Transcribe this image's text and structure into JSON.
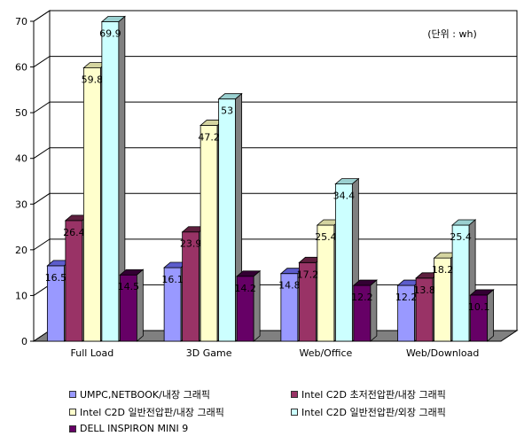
{
  "chart_data": {
    "type": "bar",
    "unit_note": "(단위 : wh)",
    "categories": [
      "Full Load",
      "3D Game",
      "Web/Office",
      "Web/Download"
    ],
    "ylim": [
      0,
      70
    ],
    "yticks": [
      0,
      10,
      20,
      30,
      40,
      50,
      60,
      70
    ],
    "grid": true,
    "legend_position": "bottom",
    "series": [
      {
        "name": "UMPC,NETBOOK/내장 그래픽",
        "values": [
          16.5,
          16.1,
          14.8,
          12.2
        ],
        "color": "#9999ff",
        "colorDark": "#5c5ccc"
      },
      {
        "name": "Intel C2D 초저전압판/내장 그래픽",
        "values": [
          26.4,
          23.9,
          17.2,
          13.8
        ],
        "color": "#993366",
        "colorDark": "#5e1f3e"
      },
      {
        "name": "Intel C2D 일반전압판/내장 그래픽",
        "values": [
          59.8,
          47.2,
          25.4,
          18.2
        ],
        "color": "#ffffcc",
        "colorDark": "#d4d4a0"
      },
      {
        "name": "Intel C2D 일반전압판/외장 그래픽",
        "values": [
          69.9,
          53,
          34.4,
          25.4
        ],
        "color": "#ccffff",
        "colorDark": "#9ad0d0"
      },
      {
        "name": "DELL INSPIRON MINI 9",
        "values": [
          14.5,
          14.2,
          12.2,
          10.1
        ],
        "color": "#660066",
        "colorDark": "#330033"
      }
    ]
  }
}
